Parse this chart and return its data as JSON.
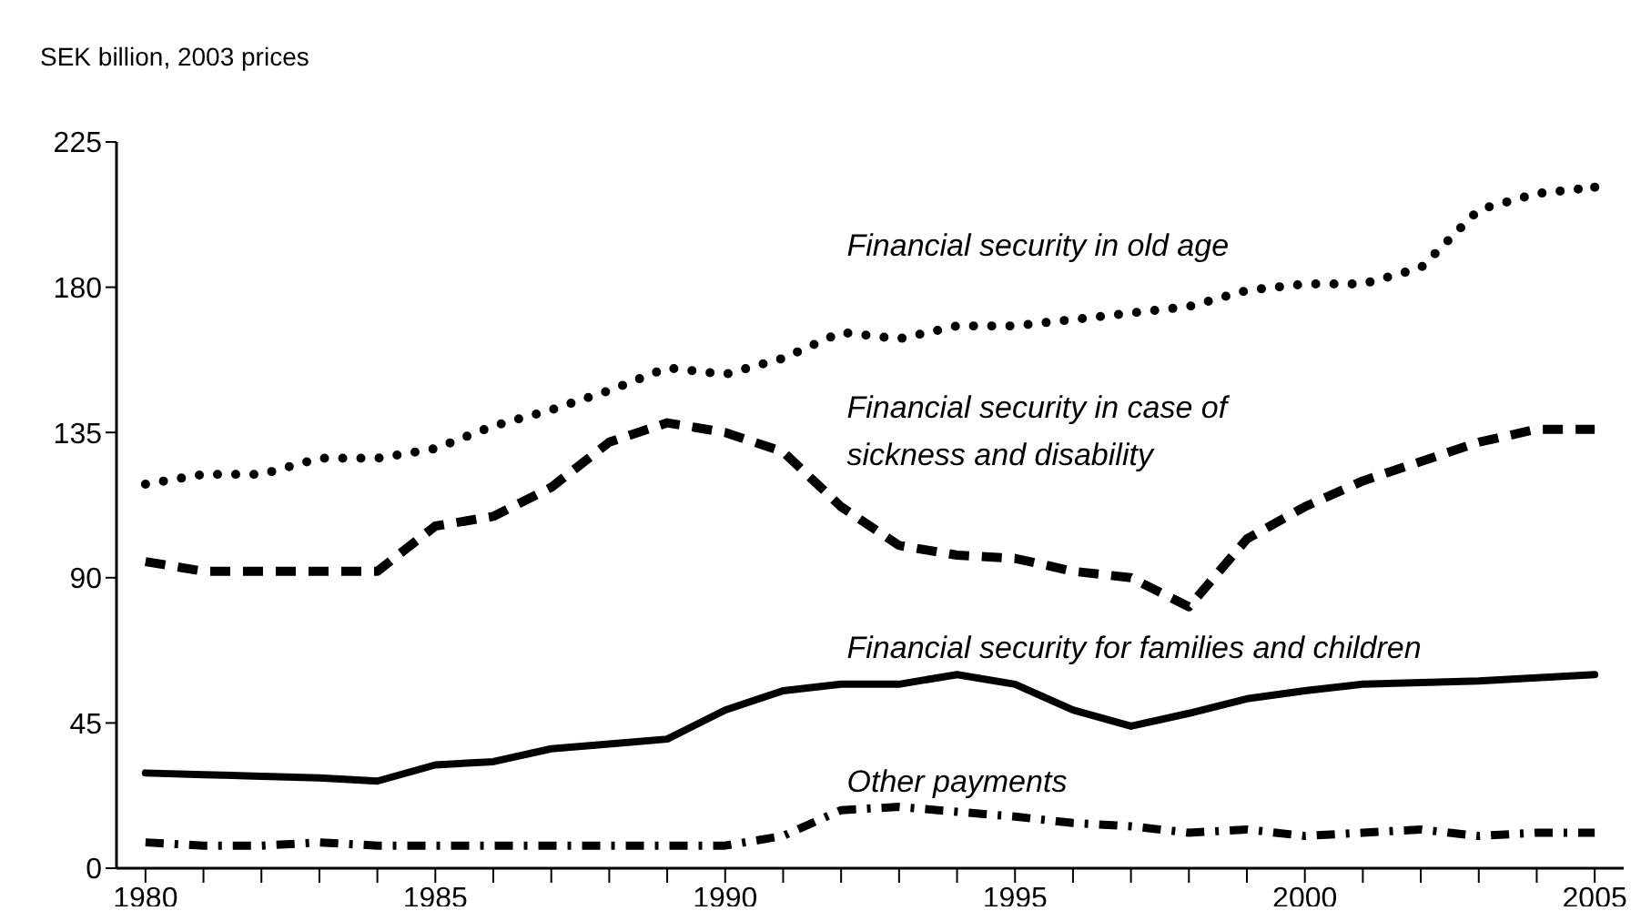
{
  "chart_data": {
    "type": "line",
    "ylabel": "SEK billion, 2003 prices",
    "x": [
      1980,
      1981,
      1982,
      1983,
      1984,
      1985,
      1986,
      1987,
      1988,
      1989,
      1990,
      1991,
      1992,
      1993,
      1994,
      1995,
      1996,
      1997,
      1998,
      1999,
      2000,
      2001,
      2002,
      2003,
      2004,
      2005
    ],
    "series": [
      {
        "name": "Financial security in old age",
        "color": "#000000",
        "line_style": "dotted",
        "values": [
          119,
          122,
          122,
          127,
          127,
          130,
          137,
          142,
          148,
          155,
          153,
          158,
          166,
          164,
          168,
          168,
          170,
          172,
          174,
          179,
          181,
          181,
          186,
          204,
          209,
          211
        ]
      },
      {
        "name": "Financial security in case of sickness and disability",
        "color": "#000000",
        "line_style": "dashed",
        "values": [
          95,
          92,
          92,
          92,
          92,
          106,
          109,
          118,
          132,
          138,
          135,
          129,
          112,
          100,
          97,
          96,
          92,
          90,
          81,
          102,
          112,
          120,
          126,
          132,
          136,
          136
        ]
      },
      {
        "name": "Financial security for families and children",
        "color": "#000000",
        "line_style": "solid",
        "values": [
          29.5,
          29,
          28.5,
          28,
          27,
          32,
          33,
          37,
          38.5,
          40,
          49,
          55,
          57,
          57,
          60,
          57,
          49,
          44,
          48,
          52.5,
          55,
          57,
          57.5,
          58,
          59,
          60
        ]
      },
      {
        "name": "Other payments",
        "color": "#000000",
        "line_style": "dashdot",
        "values": [
          8,
          7,
          7,
          8,
          7,
          7,
          7,
          7,
          7,
          7,
          7,
          10,
          18,
          19,
          17.5,
          16,
          14,
          13,
          11,
          12,
          10,
          11,
          12,
          10,
          11,
          11
        ]
      }
    ],
    "xlim": [
      1979.5,
      2005.5
    ],
    "xticks": [
      1980,
      {
        "value": 1981,
        "label": null
      },
      {
        "value": 1982,
        "label": null
      },
      {
        "value": 1983,
        "label": null
      },
      {
        "value": 1984,
        "label": null
      },
      1985,
      {
        "value": 1986,
        "label": null
      },
      {
        "value": 1987,
        "label": null
      },
      {
        "value": 1988,
        "label": null
      },
      {
        "value": 1989,
        "label": null
      },
      1990,
      {
        "value": 1991,
        "label": null
      },
      {
        "value": 1992,
        "label": null
      },
      {
        "value": 1993,
        "label": null
      },
      {
        "value": 1994,
        "label": null
      },
      1995,
      {
        "value": 1996,
        "label": null
      },
      {
        "value": 1997,
        "label": null
      },
      {
        "value": 1998,
        "label": null
      },
      {
        "value": 1999,
        "label": null
      },
      2000,
      {
        "value": 2001,
        "label": null
      },
      {
        "value": 2002,
        "label": null
      },
      {
        "value": 2003,
        "label": null
      },
      {
        "value": 2004,
        "label": null
      },
      2005
    ],
    "ylim": [
      0,
      225
    ],
    "yticks": [
      0,
      45,
      90,
      135,
      180,
      225
    ],
    "marker": "none"
  }
}
